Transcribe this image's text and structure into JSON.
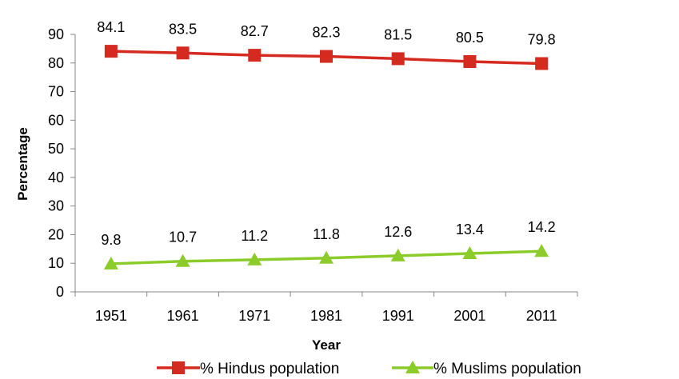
{
  "chart_data": {
    "type": "line",
    "x": [
      1951,
      1961,
      1971,
      1981,
      1991,
      2001,
      2011
    ],
    "categories": [
      "1951",
      "1961",
      "1971",
      "1981",
      "1991",
      "2001",
      "2011"
    ],
    "series": [
      {
        "name": "% Hindus population",
        "values": [
          84.1,
          83.5,
          82.7,
          82.3,
          81.5,
          80.5,
          79.8
        ],
        "labels": [
          "84.1",
          "83.5",
          "82.7",
          "82.3",
          "81.5",
          "80.5",
          "79.8"
        ],
        "color": "#d42a20",
        "marker": "square"
      },
      {
        "name": "% Muslims population",
        "values": [
          9.8,
          10.7,
          11.2,
          11.8,
          12.6,
          13.4,
          14.2
        ],
        "labels": [
          "9.8",
          "10.7",
          "11.2",
          "11.8",
          "12.6",
          "13.4",
          "14.2"
        ],
        "color": "#8ccc2a",
        "marker": "triangle"
      }
    ],
    "title": "",
    "xlabel": "Year",
    "ylabel": "Percentage",
    "ylim": [
      0,
      90
    ],
    "yticks": [
      "0",
      "10",
      "20",
      "30",
      "40",
      "50",
      "60",
      "70",
      "80",
      "90"
    ],
    "grid": false,
    "legend_position": "bottom"
  }
}
